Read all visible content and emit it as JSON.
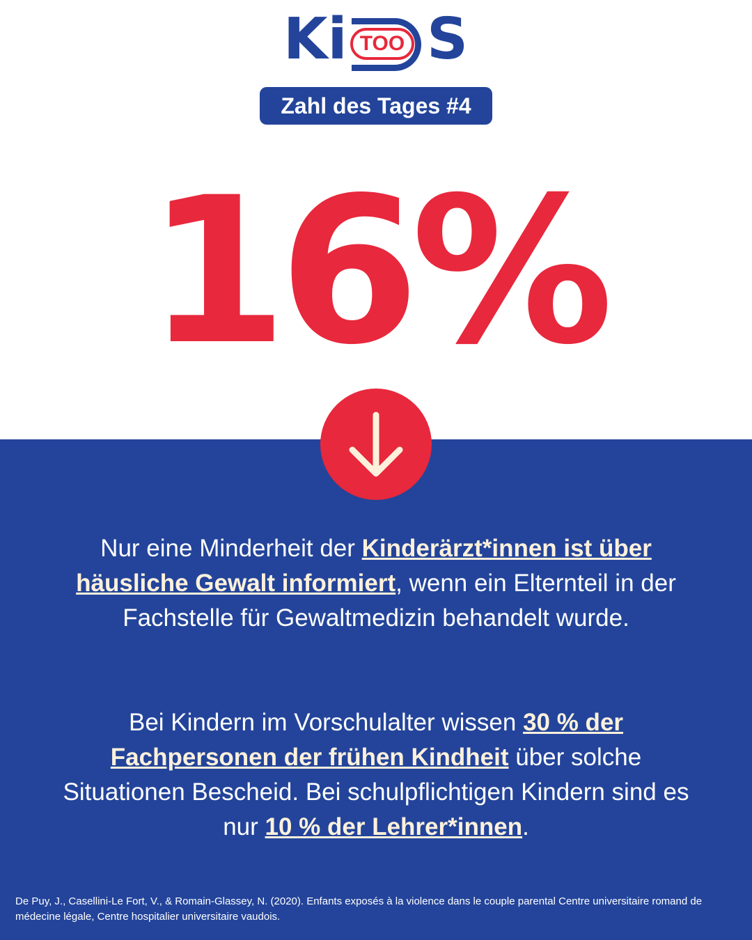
{
  "logo": {
    "letters_left": "Ki",
    "inner": "TOO",
    "letters_right": "S",
    "alt": "KiDS TOO logo"
  },
  "badge": "Zahl des Tages #4",
  "headline_number": "16%",
  "icon": "arrow-down-icon",
  "paragraph1": {
    "pre": "Nur eine Minderheit der ",
    "highlight": "Kinderärzt*innen ist über häusliche Gewalt informiert",
    "post": ", wenn ein Elternteil in der Fachstelle für Gewaltmedizin behandelt wurde."
  },
  "paragraph2": {
    "pre": "Bei Kindern im Vorschulalter wissen ",
    "highlight1": "30 % der Fachpersonen der frühen Kindheit",
    "mid": " über solche Situationen Bescheid. Bei schulpflichtigen Kindern sind es nur ",
    "highlight2": "10 % der Lehrer*innen",
    "post": "."
  },
  "source": "De Puy, J., Casellini-Le Fort, V., & Romain-Glassey, N. (2020). Enfants exposés à la violence dans le couple parental Centre universitaire romand de médecine légale, Centre hospitalier universitaire vaudois.",
  "colors": {
    "brand_blue": "#23449a",
    "accent_red": "#e8283c",
    "highlight_cream": "#fdf1dc"
  }
}
